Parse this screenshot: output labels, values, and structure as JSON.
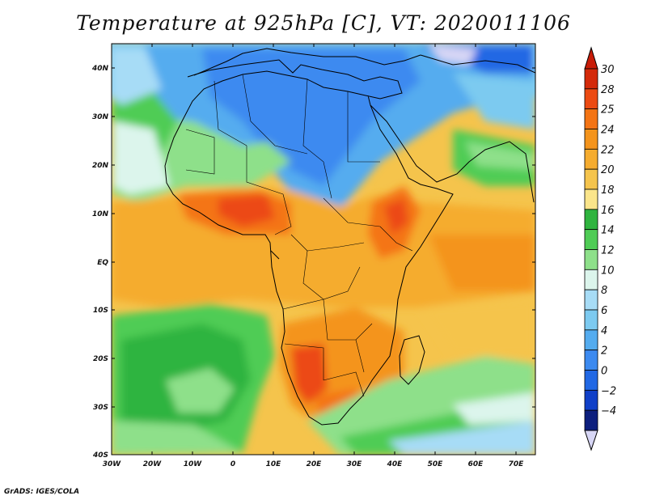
{
  "title": "Temperature at 925hPa [C], VT: 2020011106",
  "credit": "GrADS: IGES/COLA",
  "map": {
    "lon_range": [
      -30,
      75
    ],
    "lat_range": [
      -40,
      45
    ],
    "lon_ticks": [
      "30W",
      "20W",
      "10W",
      "0",
      "10E",
      "20E",
      "30E",
      "40E",
      "50E",
      "60E",
      "70E"
    ],
    "lat_ticks": [
      "40N",
      "30N",
      "20N",
      "10N",
      "EQ",
      "10S",
      "20S",
      "30S",
      "40S"
    ],
    "field": "Temperature at 925hPa",
    "units": "C"
  },
  "colorbar": {
    "labels": [
      "30",
      "28",
      "25",
      "24",
      "22",
      "20",
      "18",
      "16",
      "14",
      "12",
      "10",
      "8",
      "6",
      "4",
      "2",
      "0",
      "−2",
      "−4"
    ],
    "colors": [
      "#d42a0a",
      "#ec4a12",
      "#f47414",
      "#f4941c",
      "#f5ac2f",
      "#f5c44c",
      "#fbe58a",
      "#2fb43f",
      "#4fcc55",
      "#8ee08a",
      "#dcf5ec",
      "#a7dcf6",
      "#7ccaf0",
      "#54acef",
      "#3c8af0",
      "#2168e4",
      "#1040c8",
      "#0d1f7e"
    ],
    "top_color": "#c81c08",
    "bottom_color": "#d7d6f5"
  }
}
